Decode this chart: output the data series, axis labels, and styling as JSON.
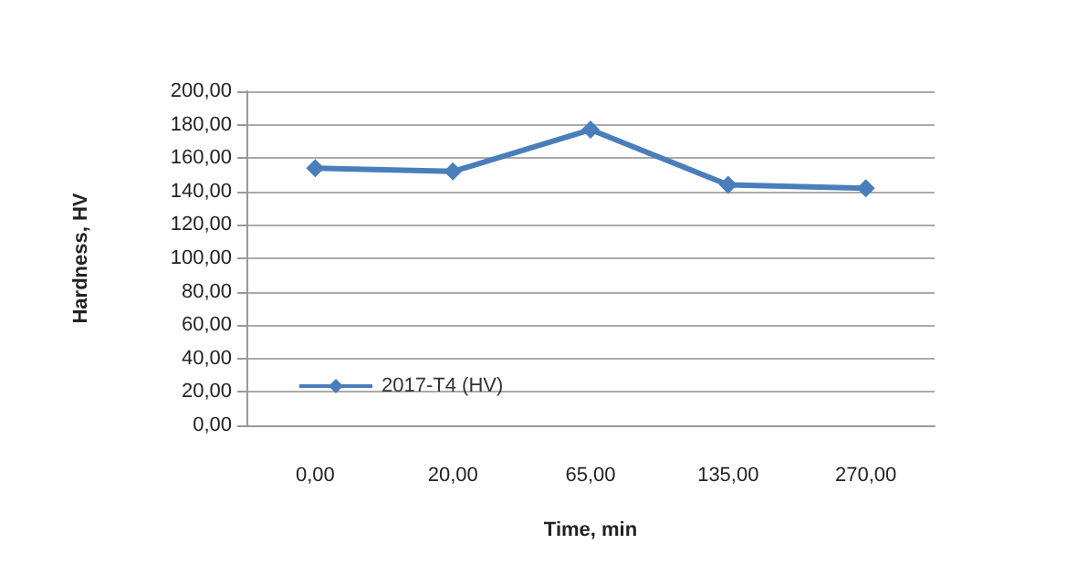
{
  "chart_data": {
    "type": "line",
    "xlabel": "Time, min",
    "ylabel": "Hardness, HV",
    "categories": [
      "0,00",
      "20,00",
      "65,00",
      "135,00",
      "270,00"
    ],
    "series": [
      {
        "name": "2017-T4 (HV)",
        "color": "#4a7ebb",
        "values": [
          154,
          152,
          177,
          144,
          142
        ]
      }
    ],
    "ylim": [
      0,
      200
    ],
    "yticks": [
      {
        "value": 0,
        "label": "0,00"
      },
      {
        "value": 20,
        "label": "20,00"
      },
      {
        "value": 40,
        "label": "40,00"
      },
      {
        "value": 60,
        "label": "60,00"
      },
      {
        "value": 80,
        "label": "80,00"
      },
      {
        "value": 100,
        "label": "100,00"
      },
      {
        "value": 120,
        "label": "120,00"
      },
      {
        "value": 140,
        "label": "140,00"
      },
      {
        "value": 160,
        "label": "160,00"
      },
      {
        "value": 180,
        "label": "180,00"
      },
      {
        "value": 200,
        "label": "200,00"
      }
    ],
    "grid": "y",
    "legend": "bottom left",
    "marker": "diamond",
    "line_style": "solid"
  }
}
